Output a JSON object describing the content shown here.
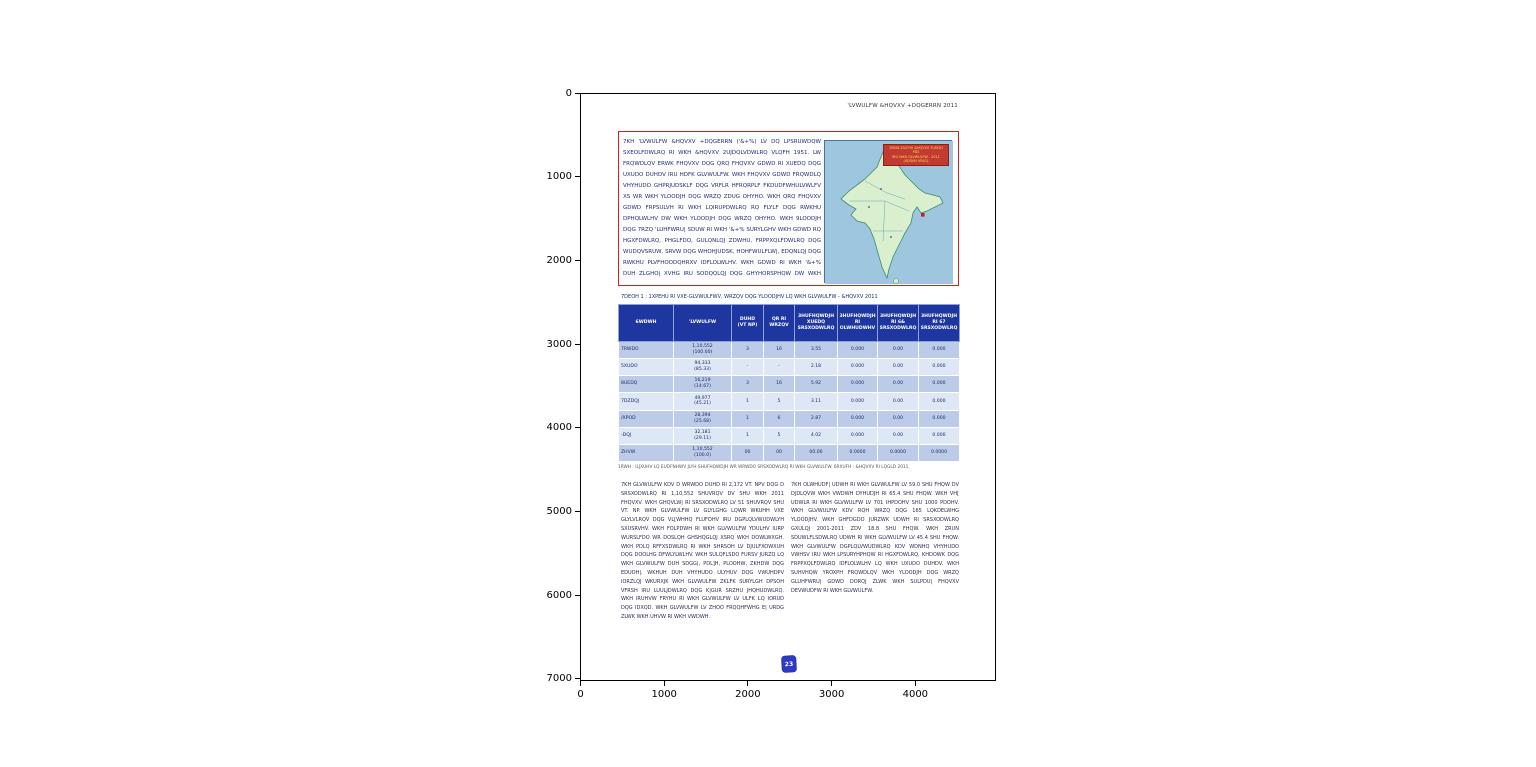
{
  "figure": {
    "y_ticks": [
      "0",
      "1000",
      "2000",
      "3000",
      "4000",
      "5000",
      "6000",
      "7000"
    ],
    "x_ticks": [
      "0",
      "1000",
      "2000",
      "3000",
      "4000"
    ]
  },
  "page": {
    "header_right": "'LVWULFW &HQVXV +DQGERRN 2011",
    "intro_text": "7KH 'LVWULFW &HQVXV +DQGERRN ('&+%) LV DQ LPSRUWDQW SXEOLFDWLRQ RI WKH &HQVXV 2UJDQLVDWLRQ VLQFH 1951. LW FRQWDLQV ERWK FHQVXV DQG QRQ FHQVXV GDWD RI XUEDQ DQG UXUDO DUHDV IRU HDFK GLVWULFW. WKH FHQVXV GDWD FRQWDLQ VHYHUDO GHPRJUDSKLF DQG VRFLR HFRQRPLF FKDUDFWHULVWLFV XS WR WKH YLOODJH DQG WRZQ ZDUG OHYHO. WKH QRQ FHQVXV GDWD FRPSULVH RI WKH LQIRUPDWLRQ RQ FLYLF DQG RWKHU DPHQLWLHV DW WKH YLOODJH DQG WRZQ OHYHO. WKH 9LOODJH DQG 7RZQ 'LUHFWRU| SDUW RI WKH '&+% SURYLGHV WKH GDWD RQ HGXFDWLRQ, PHGLFDO, GULQNLQJ ZDWHU, FRPPXQLFDWLRQ DQG WUDQVSRUW, SRVW DQG WHOHJUDSK, HOHFWULFLW|, EDQNLQJ DQG RWKHU PLVFHOODQHRXV IDFLOLWLHV. WKH GDWD RI WKH '&+% DUH ZLGHO| XVHG IRU SODQQLQJ DQG GHYHORSPHQW DW WKH JUDVV URRW OHYHO DQG DOVR E| UHVHDUFKHUV DQG DGPLQLVWUDWRUV.",
    "map": {
      "legend_lines": [
        "3RVW 2IILFHV &HQVXV 7UDGH PDS",
        "IRU WKH GLVWULFW - 2011",
        "(0DGKH VRLO)"
      ]
    },
    "caption": "7DEOH 1 : 1XPEHU RI VXE-GLVWULFWV, WRZQV DQG YLOODJHV LQ WKH GLVWULFW - &HQVXV 2011",
    "table": {
      "headers": [
        "6WDWH",
        "'LVWULFW",
        "DUHD\n(VT NP)",
        "QR RI\nWRZQV",
        "3HUFHQWDJH\nXUEDQ\nSRSXODWLRQ",
        "3HUFHQWDJH\nRI\nOLWHUDWHV",
        "3HUFHQWDJH\nRI 6&\nSRSXODWLRQ",
        "3HUFHQWDJH\nRI 67\nSRSXODWLRQ"
      ],
      "rows": [
        {
          "cells": [
            "7RWDO",
            "1,10,552\n(100.00)",
            "3",
            "16",
            "3.55",
            "0.000",
            "0.00",
            "0.000"
          ]
        },
        {
          "cells": [
            "5XUDO",
            "94,333\n(85.33)",
            "-",
            "-",
            "2.18",
            "0.000",
            "0.00",
            "0.000"
          ]
        },
        {
          "cells": [
            "8UEDQ",
            "16,219\n(14.67)",
            "3",
            "16",
            "5.92",
            "0.000",
            "0.00",
            "0.000"
          ]
        },
        {
          "cells": [
            "7DZDQJ",
            "49,977\n(45.21)",
            "1",
            "5",
            "3.11",
            "0.000",
            "0.00",
            "0.000"
          ]
        },
        {
          "cells": [
            "/XPOD",
            "28,394\n(25.68)",
            "1",
            "6",
            "2.87",
            "0.000",
            "0.00",
            "0.000"
          ]
        },
        {
          "cells": [
            "-DQJ",
            "32,181\n(29.11)",
            "1",
            "5",
            "4.02",
            "0.000",
            "0.00",
            "0.000"
          ]
        },
        {
          "cells": [
            "ZHVW",
            "1,10,552\n(100.0)",
            "00",
            "00",
            "00.00",
            "0.0000",
            "0.0000",
            "0.0000"
          ]
        }
      ]
    },
    "footnote": "1RWH : ILJXUHV LQ EUDFNHWV JLYH SHUFHQWDJH WR WRWDO SRSXODWLRQ RI WKH GLVWULFW.  6RXUFH : &HQVXV RI LQGLD 2011.",
    "body_left": "7KH GLVWULFW KDV D WRWDO DUHD RI 2,172 VT. NPV DQG D SRSXODWLRQ RI 1,10,552 SHUVRQV DV SHU WKH 2011 FHQVXV. WKH GHQVLW| RI SRSXODWLRQ LV 51 SHUVRQV SHU VT. NP. WKH GLVWULFW LV GLYLGHG LQWR WKUHH VXE GLYLVLRQV DQG VL[WHHQ FLUFOHV IRU DGPLQLVWUDWLYH SXUSRVHV. WKH FOLPDWH RI WKH GLVWULFW YDULHV IURP WURSLFDO WR DOSLQH GHSHQGLQJ XSRQ WKH DOWLWXGH. WKH PDLQ RFFXSDWLRQ RI WKH SHRSOH LV DJULFXOWXUH DQG DOOLHG DFWLYLWLHV. WKH SULQFLSDO FURSV JURZQ LQ WKH GLVWULFW DUH SDGG|, PDL]H, PLOOHW, ZKHDW DQG EDUOH|. WKHUH DUH VHYHUDO ULYHUV DQG VWUHDPV IORZLQJ WKURXJK WKH GLVWULFW ZKLFK SURYLGH DPSOH VFRSH IRU LUULJDWLRQ DQG K|GUR SRZHU JHQHUDWLRQ. WKH IRUHVW FRYHU RI WKH GLVWULFW LV ULFK LQ IORUD DQG IDXQD. WKH GLVWULFW LV ZHOO FRQQHFWHG E| URDG ZLWK WKH UHVW RI WKH VWDWH.",
    "body_right": "7KH OLWHUDF| UDWH RI WKH GLVWULFW LV 59.0 SHU FHQW DV DJDLQVW WKH VWDWH DYHUDJH RI 65.4 SHU FHQW. WKH VH[ UDWLR RI WKH GLVWULFW LV 701 IHPDOHV SHU 1000 PDOHV. WKH GLVWULFW KDV RQH WRZQ DQG 165 LQKDELWHG YLOODJHV. WKH GHFDGDO JURZWK UDWH RI SRSXODWLRQ GXULQJ 2001-2011 ZDV 18.8 SHU FHQW. WKH ZRUN SDUWLFLSDWLRQ UDWH RI WKH GLVWULFW LV 45.4 SHU FHQW. WKH GLVWULFW DGPLQLVWUDWLRQ KDV WDNHQ VHYHUDO VWHSV IRU WKH LPSURYHPHQW RI HGXFDWLRQ, KHDOWK DQG FRPPXQLFDWLRQ IDFLOLWLHV LQ WKH UXUDO DUHDV. WKH SUHVHQW YROXPH FRQWDLQV WKH YLOODJH DQG WRZQ GLUHFWRU| GDWD DORQJ ZLWK WKH SULPDU| FHQVXV DEVWUDFW RI WKH GLVWULFW.",
    "stamp_text": "23"
  }
}
